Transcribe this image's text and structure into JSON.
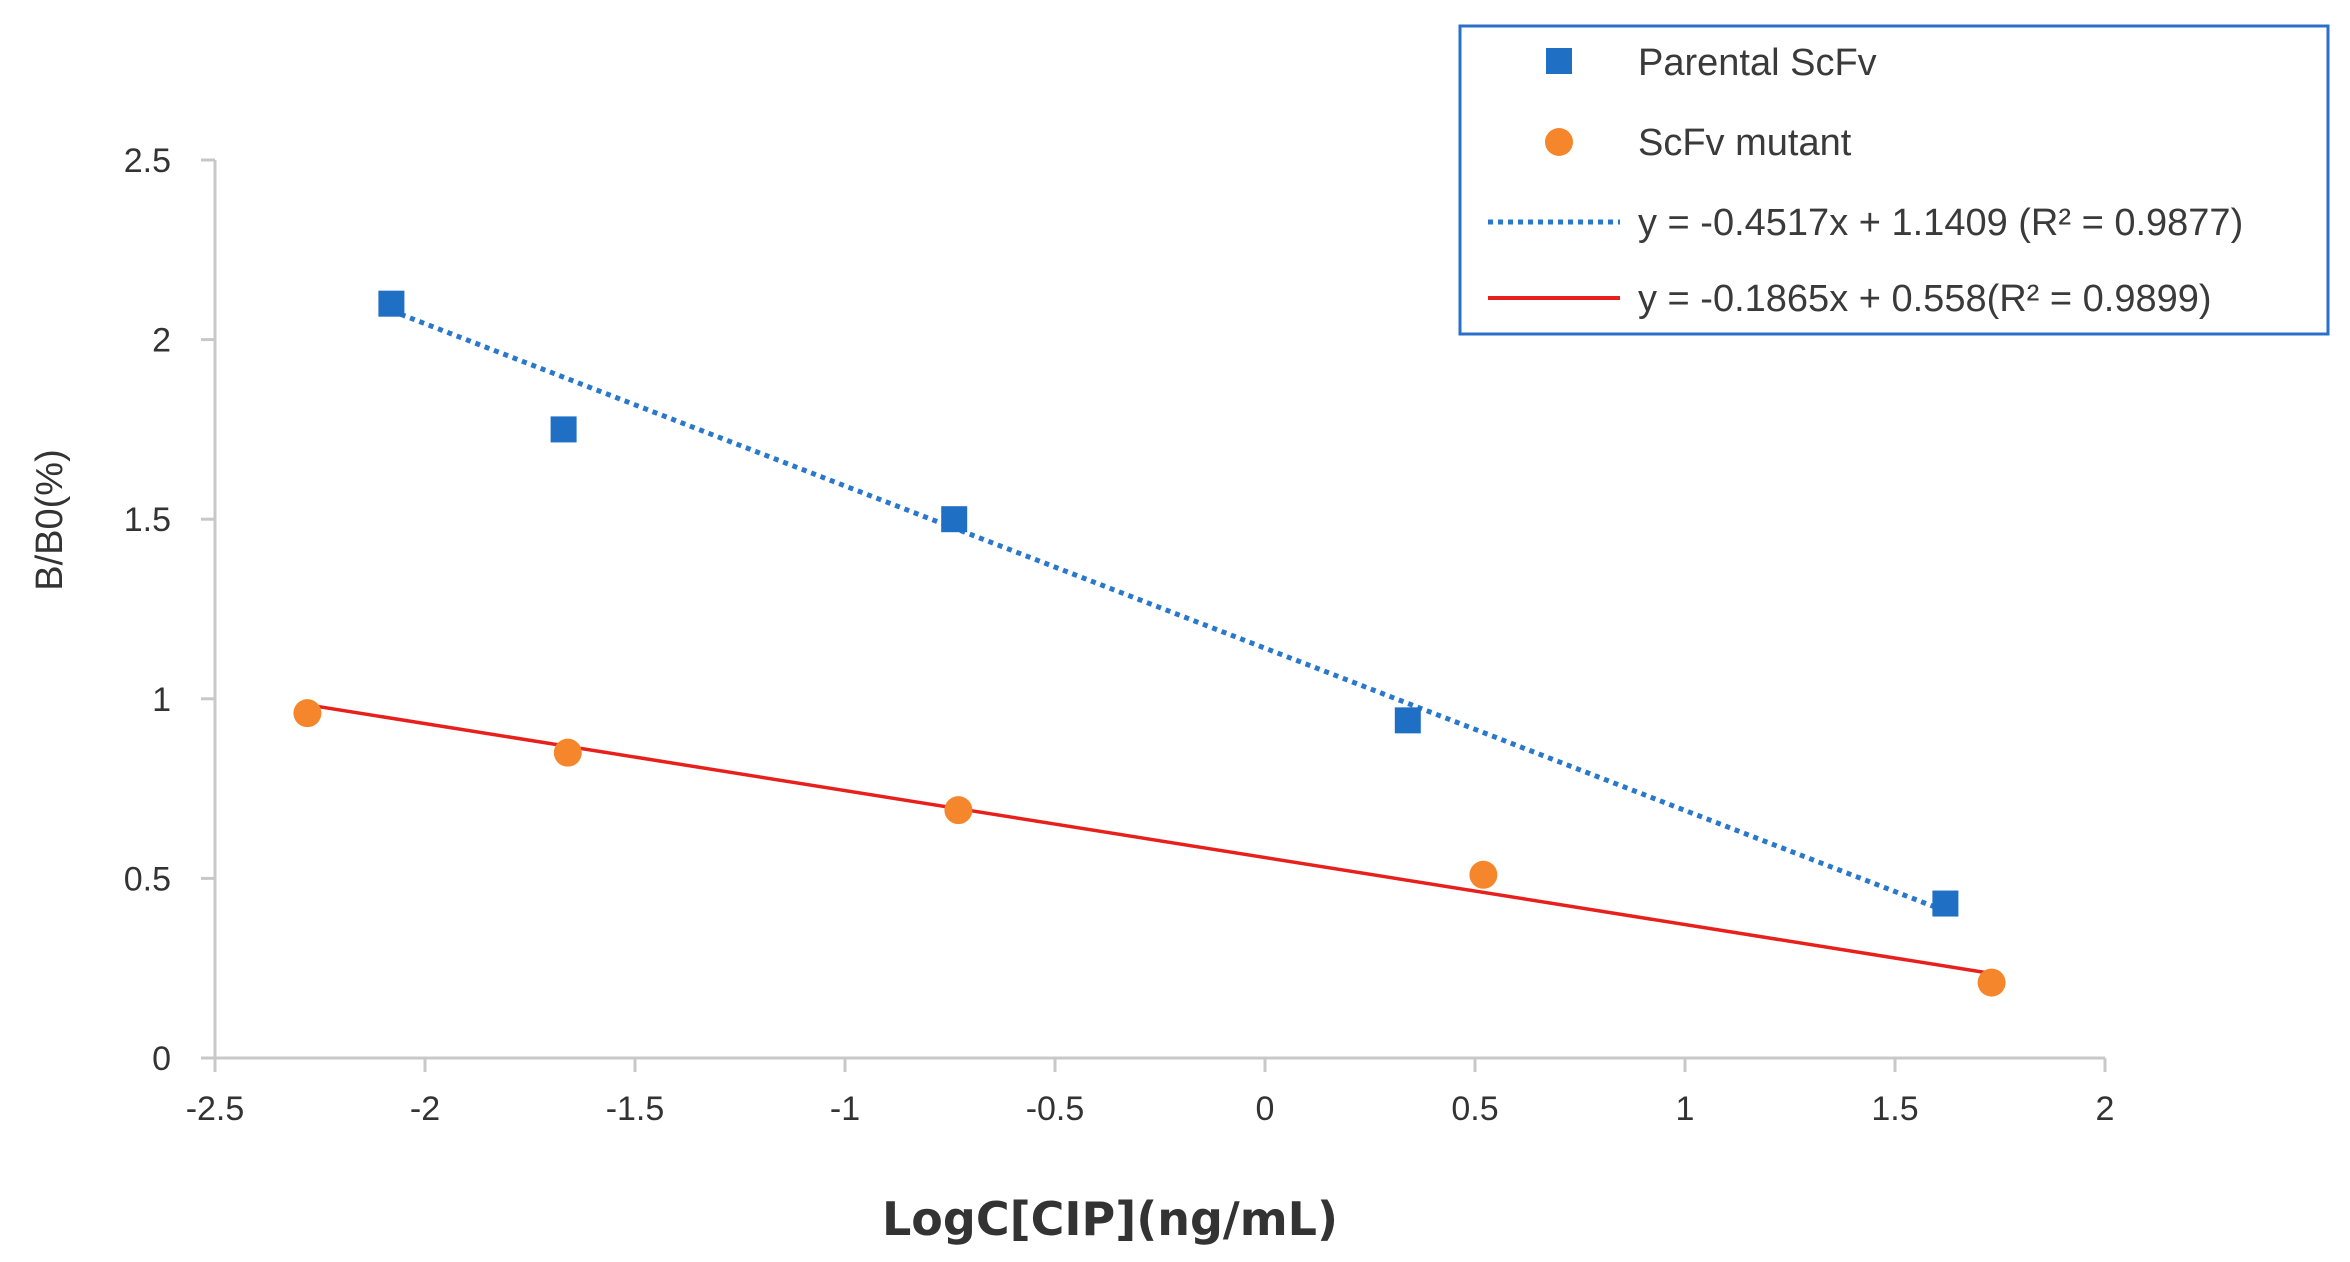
{
  "chart_data": {
    "type": "scatter",
    "title": "",
    "xlabel": "LogC[CIP](ng/mL)",
    "ylabel": "B/B0(%)",
    "xlim": [
      -2.5,
      2
    ],
    "ylim": [
      0,
      2.5
    ],
    "x_ticks": [
      "-2.5",
      "-2",
      "-1.5",
      "-1",
      "-0.5",
      "0",
      "0.5",
      "1",
      "1.5",
      "2"
    ],
    "y_ticks": [
      "0",
      "0.5",
      "1",
      "1.5",
      "2",
      "2.5"
    ],
    "grid": false,
    "legend_position": "top-right",
    "series": [
      {
        "name": "Parental ScFv",
        "marker": "square",
        "color": "#1F6FC4",
        "x": [
          -2.08,
          -1.67,
          -0.74,
          0.34,
          1.62
        ],
        "y": [
          2.1,
          1.75,
          1.5,
          0.94,
          0.43
        ]
      },
      {
        "name": "ScFv mutant",
        "marker": "circle",
        "color": "#F5862B",
        "x": [
          -2.28,
          -1.66,
          -0.73,
          0.52,
          1.73
        ],
        "y": [
          0.96,
          0.85,
          0.69,
          0.51,
          0.21
        ]
      }
    ],
    "trendlines": [
      {
        "label": "y = -0.4517x + 1.1409 (R² = 0.9877)",
        "slope": -0.4517,
        "intercept": 1.1409,
        "x_range": [
          -2.08,
          1.62
        ],
        "style": "dotted",
        "color": "#2A78CC"
      },
      {
        "label": "y = -0.1865x + 0.558(R² = 0.9899)",
        "slope": -0.1865,
        "intercept": 0.558,
        "x_range": [
          -2.28,
          1.73
        ],
        "style": "solid",
        "color": "#E8201C"
      }
    ]
  },
  "colors": {
    "axis": "#C8C8C8",
    "legend_border": "#2A6FC9"
  }
}
